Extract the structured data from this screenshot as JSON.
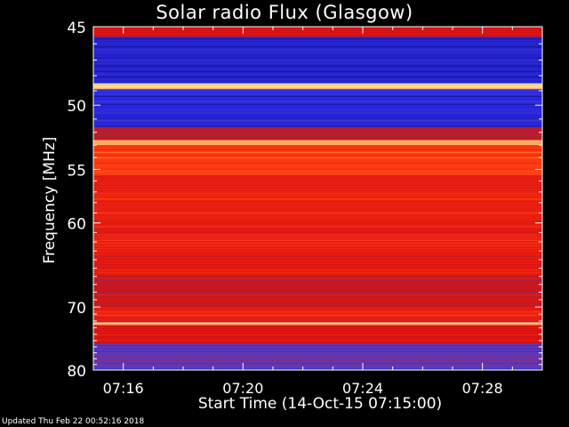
{
  "chart_data": {
    "type": "heatmap",
    "title": "Solar radio Flux (Glasgow)",
    "xlabel": "Start Time (14-Oct-15 07:15:00)",
    "ylabel": "Frequency [MHz]",
    "x_ticks": [
      "07:16",
      "07:20",
      "07:24",
      "07:28"
    ],
    "x_tick_minutes": [
      1,
      5,
      9,
      13
    ],
    "xlim_minutes": [
      0,
      15
    ],
    "y_ticks": [
      45,
      50,
      55,
      60,
      70,
      80
    ],
    "ylim": [
      45,
      80
    ],
    "y_scale": "reciprocal",
    "colormap": [
      "#0a0a80",
      "#2a2ae0",
      "#5a3ac0",
      "#b02030",
      "#e01010",
      "#ff4010",
      "#ff9040",
      "#ffe0a0"
    ],
    "bands": [
      {
        "from": 45,
        "to": 45.6,
        "level": 0.55
      },
      {
        "from": 45.6,
        "to": 48.5,
        "level": 0.12
      },
      {
        "from": 48.5,
        "to": 48.9,
        "level": 1.0
      },
      {
        "from": 48.9,
        "to": 51.6,
        "level": 0.14
      },
      {
        "from": 51.6,
        "to": 52.6,
        "level": 0.45
      },
      {
        "from": 52.6,
        "to": 53.0,
        "level": 0.92
      },
      {
        "from": 53.0,
        "to": 55.5,
        "level": 0.7
      },
      {
        "from": 55.5,
        "to": 60.5,
        "level": 0.62
      },
      {
        "from": 60.5,
        "to": 66.0,
        "level": 0.6
      },
      {
        "from": 66.0,
        "to": 70.0,
        "level": 0.5
      },
      {
        "from": 70.0,
        "to": 72.2,
        "level": 0.62
      },
      {
        "from": 72.2,
        "to": 72.6,
        "level": 0.98
      },
      {
        "from": 72.6,
        "to": 75.5,
        "level": 0.55
      },
      {
        "from": 75.5,
        "to": 80.0,
        "level": 0.3
      }
    ],
    "grid": false
  },
  "footer_text": "Updated Thu Feb 22 00:52:16 2018"
}
